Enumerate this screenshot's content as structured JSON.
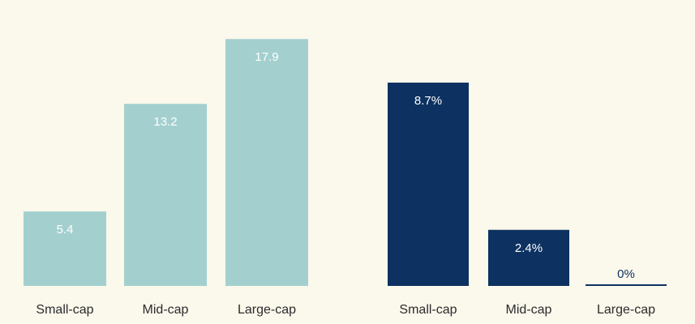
{
  "chart_data": [
    {
      "type": "bar",
      "categories": [
        "Small-cap",
        "Mid-cap",
        "Large-cap"
      ],
      "values": [
        5.4,
        13.2,
        17.9
      ],
      "value_labels": [
        "5.4",
        "13.2",
        "17.9"
      ],
      "ylim": [
        0,
        18.5
      ],
      "color": "#a3d0cf",
      "label_color": "#ffffff"
    },
    {
      "type": "bar",
      "categories": [
        "Small-cap",
        "Mid-cap",
        "Large-cap"
      ],
      "values": [
        8.7,
        2.4,
        0
      ],
      "value_labels": [
        "8.7%",
        "2.4%",
        "0%"
      ],
      "ylim": [
        0,
        8.7
      ],
      "color": "#0d3261",
      "label_color": "#ffffff",
      "zero_label_color": "#0d3261"
    }
  ]
}
